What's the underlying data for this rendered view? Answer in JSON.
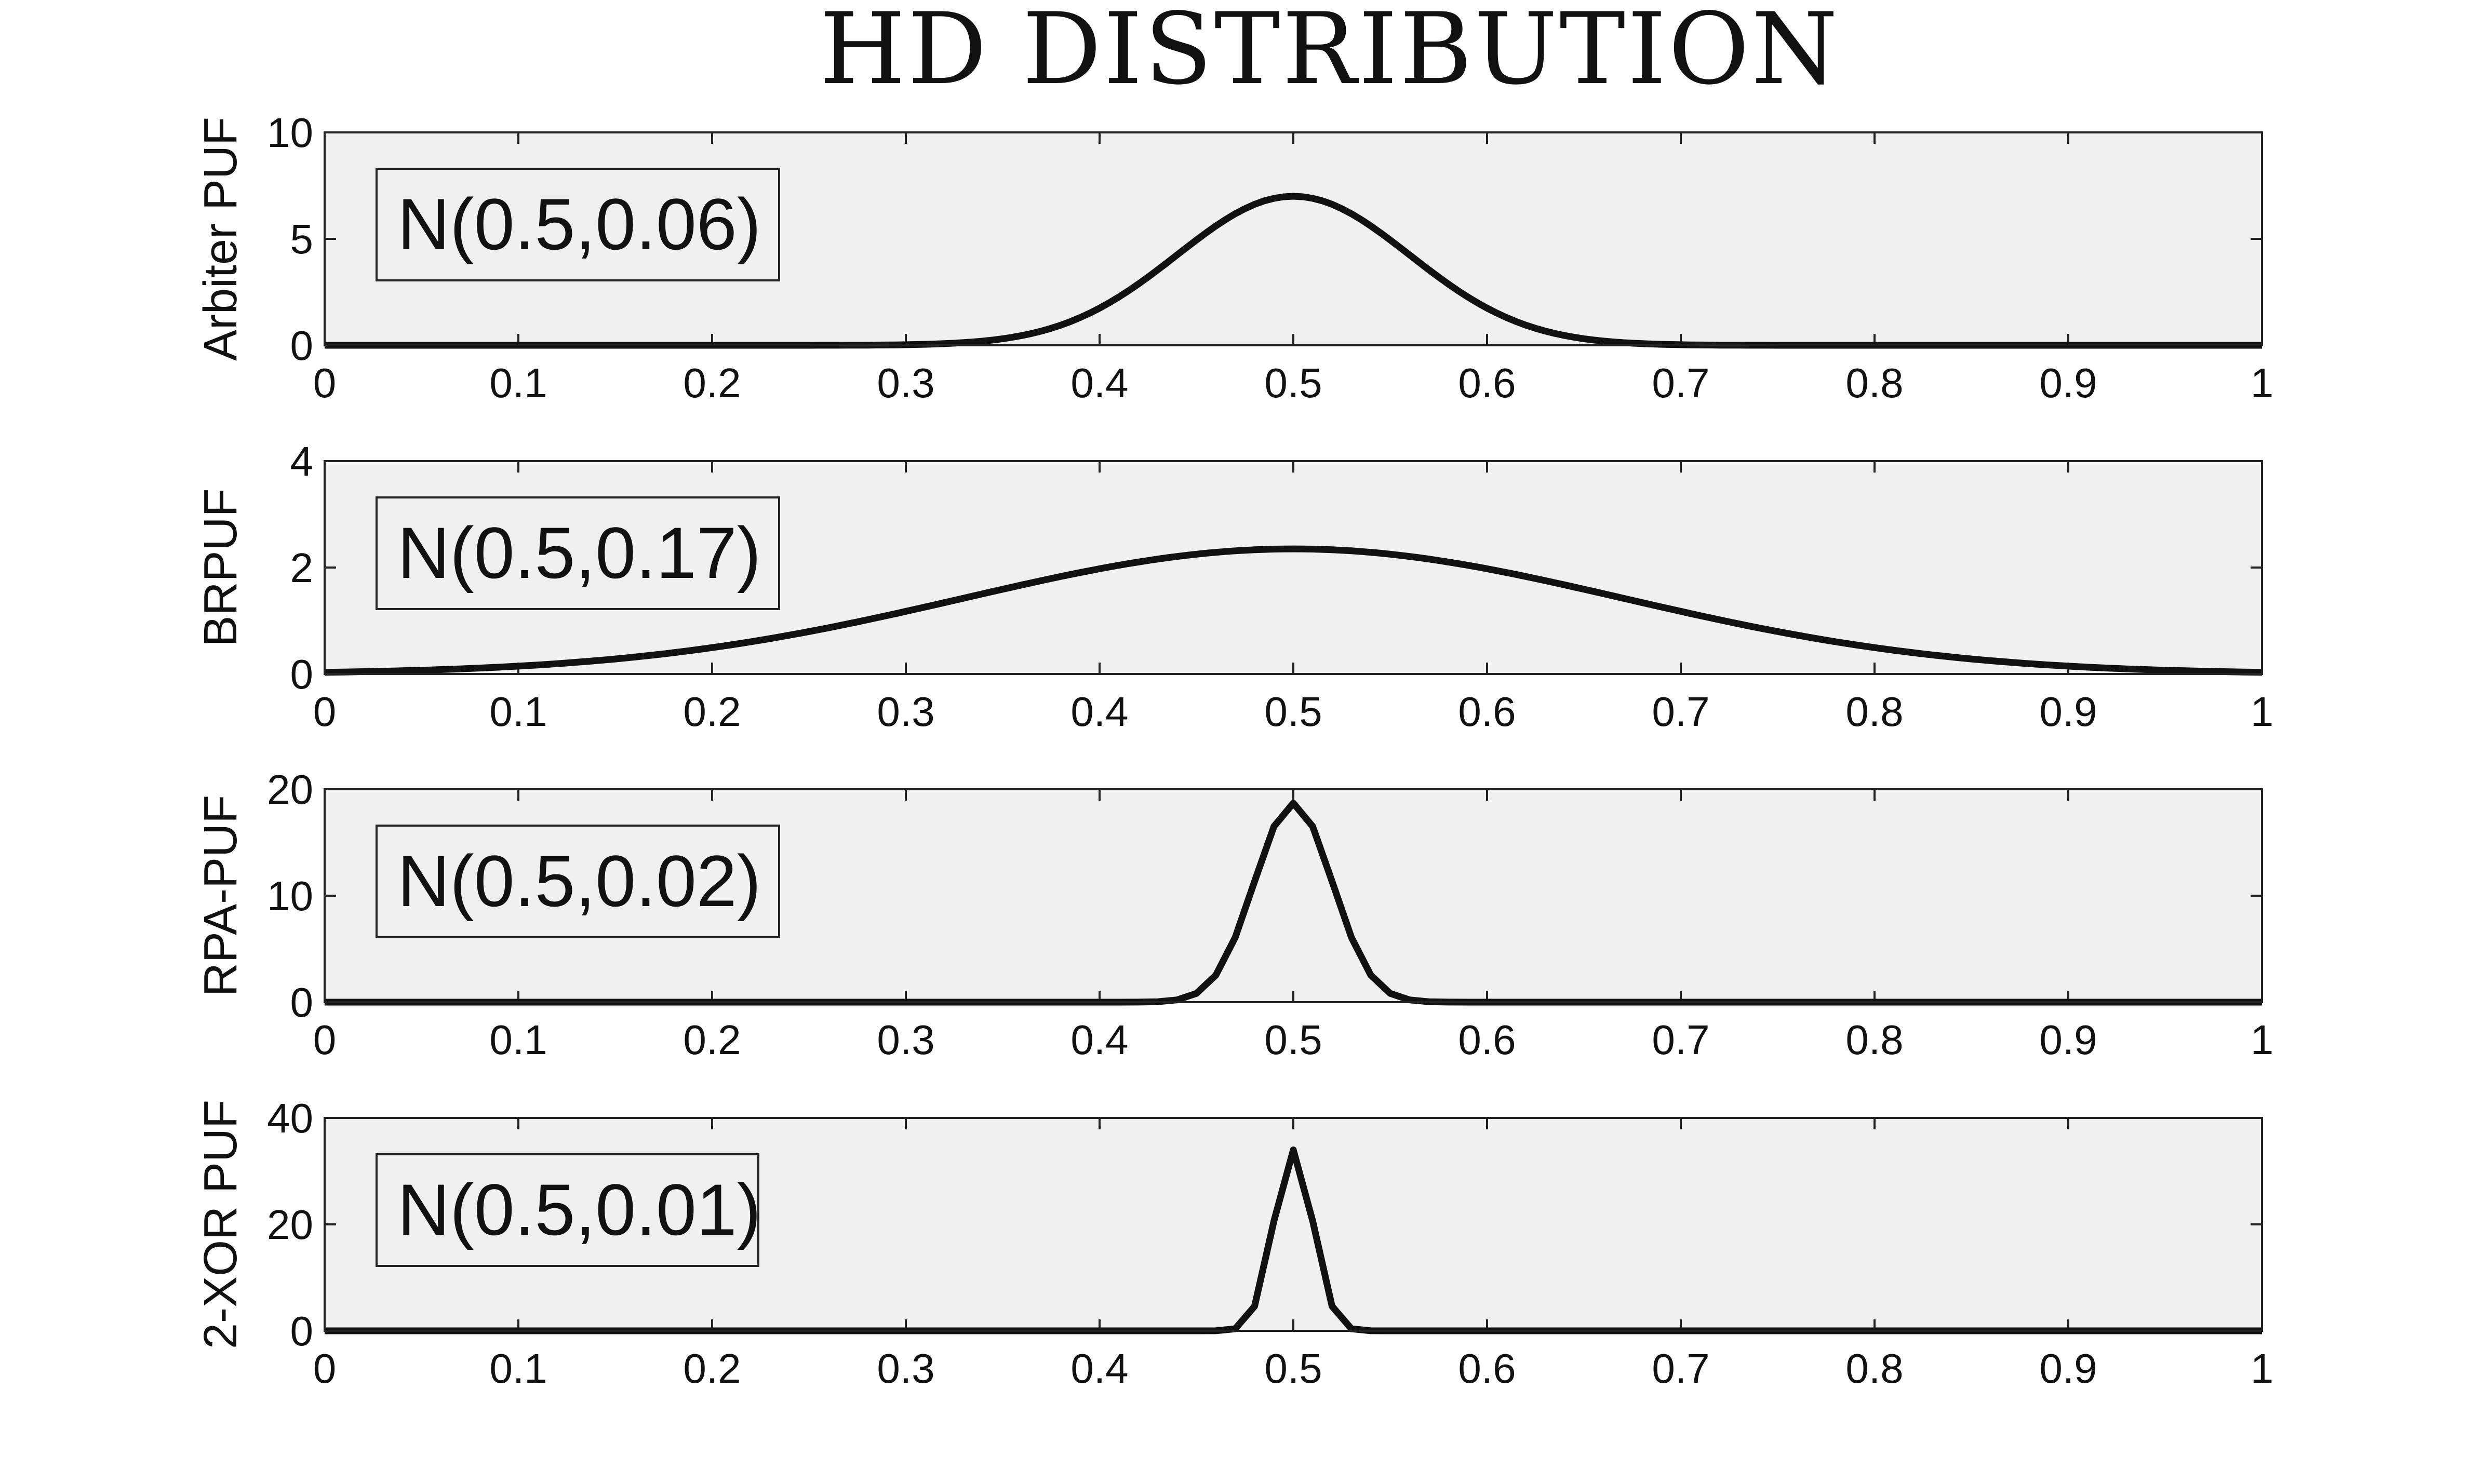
{
  "figure_title": "HD DISTRIBUTION",
  "colors": {
    "axes_background": "#f0f0f0",
    "line": "#111111",
    "frame": "#222222"
  },
  "chart_data": [
    {
      "type": "line",
      "ylabel": "Arbiter PUF",
      "legend": "N(0.5,0.06)",
      "legend_placement": "top-left",
      "xlim": [
        0,
        1
      ],
      "ylim": [
        0,
        10
      ],
      "xticks": [
        "0",
        "0.1",
        "0.2",
        "0.3",
        "0.4",
        "0.5",
        "0.6",
        "0.7",
        "0.8",
        "0.9",
        "1"
      ],
      "yticks": [
        "0",
        "5",
        "10"
      ],
      "distribution": {
        "mean": 0.5,
        "sigma": 0.06
      },
      "peak": 7
    },
    {
      "type": "line",
      "ylabel": "BRPUF",
      "legend": "N(0.5,0.17)",
      "legend_placement": "top-left",
      "xlim": [
        0,
        1
      ],
      "ylim": [
        0,
        4
      ],
      "xticks": [
        "0",
        "0.1",
        "0.2",
        "0.3",
        "0.4",
        "0.5",
        "0.6",
        "0.7",
        "0.8",
        "0.9",
        "1"
      ],
      "yticks": [
        "0",
        "2",
        "4"
      ],
      "distribution": {
        "mean": 0.5,
        "sigma": 0.17
      },
      "peak": 2.35
    },
    {
      "type": "line",
      "ylabel": "RPA-PUF",
      "legend": "N(0.5,0.02)",
      "legend_placement": "top-left",
      "xlim": [
        0,
        1
      ],
      "ylim": [
        0,
        20
      ],
      "xticks": [
        "0",
        "0.1",
        "0.2",
        "0.3",
        "0.4",
        "0.5",
        "0.6",
        "0.7",
        "0.8",
        "0.9",
        "1"
      ],
      "yticks": [
        "0",
        "10",
        "20"
      ],
      "distribution": {
        "mean": 0.5,
        "sigma": 0.02
      },
      "peak": 18.7
    },
    {
      "type": "line",
      "ylabel": "2-XOR PUF",
      "legend": "N(0.5,0.01)",
      "legend_placement": "top-left",
      "xlim": [
        0,
        1
      ],
      "ylim": [
        0,
        40
      ],
      "xticks": [
        "0",
        "0.1",
        "0.2",
        "0.3",
        "0.4",
        "0.5",
        "0.6",
        "0.7",
        "0.8",
        "0.9",
        "1"
      ],
      "yticks": [
        "0",
        "20",
        "40"
      ],
      "distribution": {
        "mean": 0.5,
        "sigma": 0.01
      },
      "peak": 34
    }
  ]
}
